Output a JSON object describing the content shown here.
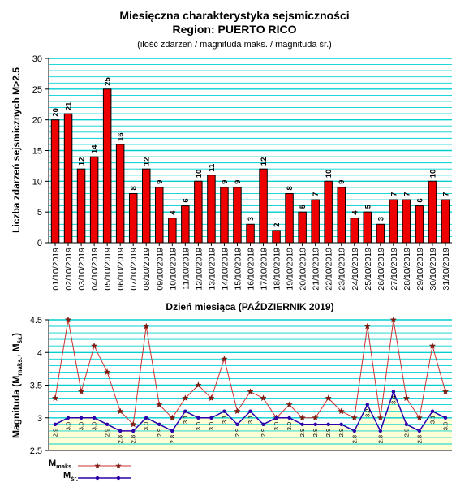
{
  "title": "Miesięczna charakterystyka sejsmiczności",
  "region": "Region: PUERTO RICO",
  "subtitle": "(ilość zdarzeń / magnituda maks. / magnituda śr.)",
  "colors": {
    "bar": "#ee0000",
    "bar_stroke": "#000000",
    "grid": "#00d0d0",
    "max_line": "#cc3333",
    "max_marker": "#7a1a10",
    "avg_line": "#2a00aa",
    "avg_marker": "#2a00aa",
    "fill": "#ffffd5"
  },
  "chart_data": [
    {
      "type": "bar",
      "ylabel": "Liczba zdarzeń sejsmicznych M>2.5",
      "xlabel": "Dzień miesiąca (PAŹDZIERNIK 2019)",
      "ylim": [
        0,
        30
      ],
      "yticks": [
        0,
        5,
        10,
        15,
        20,
        25,
        30
      ],
      "categories": [
        "01/10/2019",
        "02/10/2019",
        "03/10/2019",
        "04/10/2019",
        "05/10/2019",
        "06/10/2019",
        "07/10/2019",
        "08/10/2019",
        "09/10/2019",
        "10/10/2019",
        "11/10/2019",
        "12/10/2019",
        "13/10/2019",
        "14/10/2019",
        "15/10/2019",
        "16/10/2019",
        "17/10/2019",
        "18/10/2019",
        "19/10/2019",
        "20/10/2019",
        "21/10/2019",
        "22/10/2019",
        "23/10/2019",
        "24/10/2019",
        "25/10/2019",
        "26/10/2019",
        "27/10/2019",
        "28/10/2019",
        "29/10/2019",
        "30/10/2019",
        "31/10/2019"
      ],
      "values": [
        20,
        21,
        12,
        14,
        25,
        16,
        8,
        12,
        9,
        4,
        6,
        10,
        11,
        9,
        9,
        3,
        12,
        2,
        8,
        5,
        7,
        10,
        9,
        4,
        5,
        3,
        7,
        7,
        6,
        10,
        7
      ],
      "grid": true
    },
    {
      "type": "line",
      "ylabel": "Magnituda (M",
      "ylabel_sub1": "maks.",
      "ylabel_mid": ", M",
      "ylabel_sub2": "śr.",
      "ylabel_end": ")",
      "ylim": [
        2.5,
        4.5
      ],
      "yticks": [
        "2.5",
        "3",
        "3.5",
        "4",
        "4.5"
      ],
      "grid": true,
      "legend_position": "bottom-left",
      "series": [
        {
          "name": "M",
          "name_sub": "maks.",
          "marker": "star",
          "values": [
            3.3,
            4.5,
            3.4,
            4.1,
            3.7,
            3.1,
            2.9,
            4.4,
            3.2,
            3.0,
            3.3,
            3.5,
            3.3,
            3.9,
            3.1,
            3.4,
            3.3,
            3.0,
            3.2,
            3.0,
            3.0,
            3.3,
            3.1,
            3.0,
            4.4,
            3.0,
            4.5,
            3.3,
            3.0,
            4.1,
            3.4
          ]
        },
        {
          "name": "M",
          "name_sub": "śr.",
          "marker": "dot",
          "values": [
            2.9,
            3.0,
            3.0,
            3.0,
            2.9,
            2.8,
            2.8,
            3.0,
            2.9,
            2.8,
            3.1,
            3.0,
            3.0,
            3.1,
            2.9,
            3.1,
            2.9,
            3.0,
            3.0,
            2.9,
            2.9,
            2.9,
            2.9,
            2.8,
            3.2,
            2.8,
            3.4,
            2.9,
            2.8,
            3.1,
            3.0
          ],
          "labels": [
            "2.9",
            "3.0",
            "3.0",
            "3.0",
            "2.9",
            "2.8",
            "2.8",
            "3.0",
            "2.9",
            "2.8",
            "3.1",
            "3.0",
            "3.0",
            "3.1",
            "2.9",
            "3.1",
            "2.9",
            "3.0",
            "3.0",
            "2.9",
            "2.9",
            "2.9",
            "2.9",
            "2.8",
            "3.2",
            "2.8",
            "3.4",
            "2.9",
            "2.8",
            "3.1",
            "3.0"
          ]
        }
      ]
    }
  ]
}
